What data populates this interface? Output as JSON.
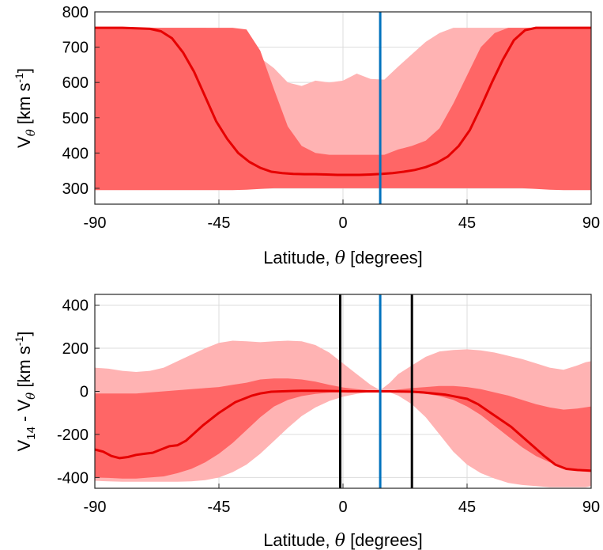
{
  "colors": {
    "outer_band": "#ffb3b3",
    "inner_band": "#ff6666",
    "median_line": "#e60000",
    "blue_marker": "#0072bd",
    "black_marker": "#000000"
  },
  "chart_data": [
    {
      "type": "area",
      "xlabel_prefix": "Latitude, ",
      "xlabel_symbol": "θ",
      "xlabel_suffix": " [degrees]",
      "ylabel_main": "V",
      "ylabel_sub": "θ",
      "ylabel_units": " [km s",
      "ylabel_units_sup": "-1",
      "ylabel_close": "]",
      "xlim": [
        -90,
        90
      ],
      "ylim": [
        255,
        800
      ],
      "xticks": [
        -90,
        -45,
        0,
        45,
        90
      ],
      "xtick_labels": [
        "-90",
        "-45",
        "0",
        "45",
        "90"
      ],
      "yticks": [
        300,
        400,
        500,
        600,
        700,
        800
      ],
      "ytick_labels": [
        "300",
        "400",
        "500",
        "600",
        "700",
        "800"
      ],
      "grid": true,
      "vlines": [
        {
          "x": 13.5,
          "color": "blue"
        }
      ],
      "outer_band": {
        "x": [
          -90,
          -88,
          -85,
          -80,
          -75,
          -70,
          -65,
          -60,
          -55,
          -50,
          -45,
          -40,
          -35,
          -30,
          -25,
          -20,
          -15,
          -10,
          -5,
          0,
          5,
          10,
          15,
          20,
          25,
          30,
          35,
          40,
          45,
          50,
          55,
          60,
          65,
          70,
          75,
          80,
          82,
          85,
          88,
          90
        ],
        "upper": [
          755,
          755,
          755,
          755,
          755,
          755,
          755,
          755,
          755,
          755,
          750,
          735,
          705,
          670,
          640,
          600,
          590,
          605,
          600,
          605,
          625,
          610,
          608,
          645,
          680,
          715,
          740,
          755,
          755,
          755,
          755,
          755,
          755,
          755,
          755,
          755,
          755,
          755,
          755,
          755
        ],
        "lower": [
          330,
          335,
          375,
          395,
          375,
          365,
          380,
          370,
          350,
          335,
          325,
          320,
          318,
          316,
          315,
          315,
          315,
          316,
          318,
          318,
          318,
          318,
          320,
          340,
          365,
          380,
          385,
          390,
          400,
          425,
          450,
          500,
          525,
          505,
          470,
          575,
          580,
          545,
          480,
          440
        ]
      },
      "inner_band": {
        "x": [
          -90,
          -85,
          -80,
          -75,
          -70,
          -65,
          -60,
          -55,
          -50,
          -45,
          -40,
          -35,
          -30,
          -25,
          -20,
          -15,
          -10,
          -5,
          0,
          5,
          10,
          15,
          20,
          25,
          30,
          35,
          40,
          45,
          50,
          55,
          60,
          65,
          70,
          75,
          80,
          85,
          90
        ],
        "upper": [
          755,
          755,
          755,
          755,
          755,
          755,
          755,
          755,
          755,
          755,
          755,
          750,
          690,
          580,
          475,
          420,
          400,
          395,
          395,
          395,
          395,
          395,
          410,
          420,
          435,
          470,
          540,
          620,
          700,
          740,
          755,
          755,
          755,
          755,
          755,
          755,
          755
        ],
        "lower": [
          295,
          295,
          295,
          295,
          295,
          295,
          295,
          295,
          295,
          295,
          295,
          296,
          298,
          300,
          300,
          300,
          300,
          300,
          300,
          300,
          300,
          300,
          300,
          300,
          300,
          300,
          300,
          300,
          300,
          300,
          300,
          300,
          298,
          296,
          295,
          295,
          295
        ]
      },
      "median": {
        "x": [
          -90,
          -80,
          -70,
          -66,
          -62,
          -58,
          -54,
          -50,
          -46,
          -42,
          -38,
          -34,
          -30,
          -26,
          -22,
          -18,
          -14,
          -10,
          -6,
          -2,
          2,
          6,
          10,
          14,
          18,
          22,
          26,
          30,
          34,
          38,
          42,
          46,
          50,
          54,
          58,
          62,
          66,
          70,
          75,
          80,
          90
        ],
        "y": [
          755,
          755,
          752,
          745,
          725,
          685,
          630,
          560,
          490,
          440,
          400,
          375,
          358,
          347,
          343,
          341,
          340,
          340,
          339,
          338,
          338,
          338,
          339,
          341,
          343,
          347,
          352,
          360,
          372,
          390,
          420,
          465,
          530,
          600,
          665,
          720,
          748,
          755,
          755,
          755,
          755
        ]
      }
    },
    {
      "type": "area",
      "xlabel_prefix": "Latitude, ",
      "xlabel_symbol": "θ",
      "xlabel_suffix": " [degrees]",
      "ylabel_main": "V",
      "ylabel_sub14": "14",
      "ylabel_dash": " - V",
      "ylabel_sub": "θ",
      "ylabel_units": " [km s",
      "ylabel_units_sup": "-1",
      "ylabel_close": "]",
      "xlim": [
        -90,
        90
      ],
      "ylim": [
        -450,
        450
      ],
      "xticks": [
        -90,
        -45,
        0,
        45,
        90
      ],
      "xtick_labels": [
        "-90",
        "-45",
        "0",
        "45",
        "90"
      ],
      "yticks": [
        -400,
        -200,
        0,
        200,
        400
      ],
      "ytick_labels": [
        "-400",
        "-200",
        "0",
        "200",
        "400"
      ],
      "grid": true,
      "vlines": [
        {
          "x": -1,
          "color": "black"
        },
        {
          "x": 13.5,
          "color": "blue"
        },
        {
          "x": 25,
          "color": "black"
        }
      ],
      "outer_band": {
        "x": [
          -90,
          -85,
          -80,
          -75,
          -70,
          -65,
          -60,
          -55,
          -50,
          -45,
          -40,
          -35,
          -30,
          -25,
          -20,
          -15,
          -10,
          -5,
          0,
          5,
          10,
          13.5,
          17,
          20,
          25,
          30,
          35,
          40,
          45,
          50,
          55,
          60,
          65,
          70,
          75,
          80,
          85,
          88,
          90
        ],
        "upper": [
          110,
          105,
          95,
          90,
          95,
          110,
          140,
          170,
          200,
          225,
          235,
          232,
          228,
          232,
          235,
          232,
          215,
          180,
          130,
          80,
          30,
          5,
          40,
          80,
          120,
          160,
          185,
          192,
          195,
          190,
          180,
          165,
          150,
          130,
          110,
          100,
          120,
          135,
          140
        ],
        "upper_side": "above",
        "lower": [
          -415,
          -418,
          -420,
          -420,
          -420,
          -420,
          -420,
          -418,
          -412,
          -400,
          -375,
          -340,
          -290,
          -230,
          -170,
          -115,
          -75,
          -45,
          -25,
          -12,
          -3,
          0,
          -5,
          -20,
          -60,
          -120,
          -200,
          -280,
          -340,
          -380,
          -405,
          -425,
          -435,
          -440,
          -445,
          -445,
          -445,
          -445,
          -440
        ]
      },
      "inner_band": {
        "x": [
          -90,
          -85,
          -80,
          -75,
          -70,
          -65,
          -60,
          -55,
          -50,
          -45,
          -40,
          -35,
          -30,
          -25,
          -20,
          -15,
          -10,
          -5,
          0,
          5,
          10,
          13.5,
          17,
          20,
          25,
          30,
          35,
          40,
          45,
          50,
          55,
          60,
          65,
          70,
          75,
          80,
          85,
          90
        ],
        "upper": [
          -10,
          -10,
          -10,
          -10,
          -5,
          0,
          5,
          10,
          15,
          20,
          30,
          40,
          55,
          60,
          60,
          55,
          45,
          30,
          18,
          10,
          4,
          0,
          3,
          8,
          15,
          20,
          25,
          25,
          20,
          10,
          -5,
          -20,
          -40,
          -60,
          -75,
          -85,
          -80,
          -70
        ],
        "lower": [
          -400,
          -402,
          -405,
          -405,
          -400,
          -395,
          -380,
          -360,
          -330,
          -290,
          -240,
          -180,
          -120,
          -70,
          -40,
          -22,
          -12,
          -6,
          -3,
          -1,
          0,
          0,
          0,
          -2,
          -6,
          -12,
          -22,
          -40,
          -70,
          -110,
          -160,
          -210,
          -260,
          -300,
          -330,
          -355,
          -370,
          -375
        ]
      },
      "median": {
        "x": [
          -90,
          -87,
          -84,
          -81,
          -78,
          -75,
          -72,
          -69,
          -66,
          -63,
          -60,
          -57,
          -54,
          -51,
          -48,
          -45,
          -42,
          -39,
          -36,
          -33,
          -30,
          -26,
          -22,
          -18,
          -14,
          -10,
          -6,
          -2,
          2,
          6,
          10,
          13.5,
          17,
          21,
          25,
          29,
          33,
          37,
          41,
          45,
          49,
          53,
          57,
          61,
          65,
          69,
          73,
          77,
          81,
          85,
          90
        ],
        "y": [
          -270,
          -280,
          -300,
          -310,
          -305,
          -295,
          -290,
          -285,
          -270,
          -255,
          -250,
          -230,
          -195,
          -160,
          -130,
          -100,
          -75,
          -50,
          -35,
          -20,
          -10,
          -2,
          0,
          2,
          3,
          3,
          2,
          1,
          0,
          0,
          0,
          0,
          0,
          -1,
          -2,
          -5,
          -10,
          -15,
          -25,
          -35,
          -60,
          -95,
          -130,
          -165,
          -210,
          -255,
          -300,
          -340,
          -360,
          -365,
          -368
        ]
      }
    }
  ]
}
